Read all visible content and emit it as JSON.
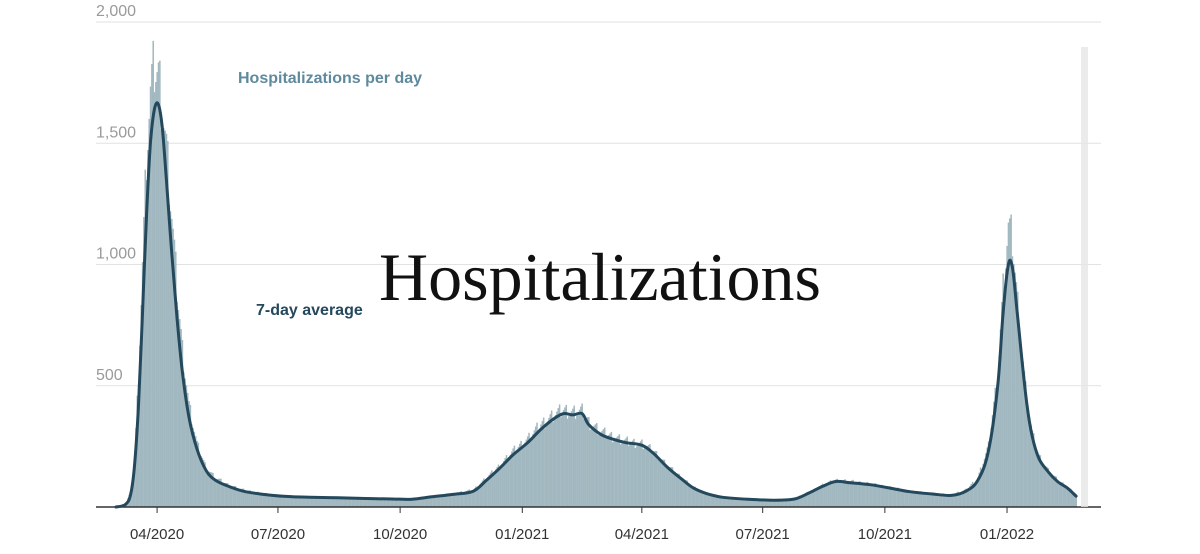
{
  "chart_data": {
    "type": "bar",
    "title": "Hospitalizations",
    "xlabel": "",
    "ylabel": "",
    "ylim": [
      0,
      2000
    ],
    "x_range": [
      "2020-02-15",
      "2022-03-12"
    ],
    "y_ticks": [
      "500",
      "1,000",
      "1,500",
      "2,000"
    ],
    "y_tick_values": [
      500,
      1000,
      1500,
      2000
    ],
    "x_ticks": [
      "04/2020",
      "07/2020",
      "10/2020",
      "01/2021",
      "04/2021",
      "07/2021",
      "10/2021",
      "01/2022"
    ],
    "x_tick_dates": [
      "2020-04-01",
      "2020-07-01",
      "2020-10-01",
      "2021-01-01",
      "2021-04-01",
      "2021-07-01",
      "2021-10-01",
      "2022-01-01"
    ],
    "grid": true,
    "series": [
      {
        "name": "Hospitalizations per day",
        "kind": "bar",
        "color": "#a2b8c0",
        "points": [
          [
            "2020-03-01",
            0
          ],
          [
            "2020-03-08",
            10
          ],
          [
            "2020-03-12",
            60
          ],
          [
            "2020-03-15",
            200
          ],
          [
            "2020-03-18",
            550
          ],
          [
            "2020-03-21",
            1000
          ],
          [
            "2020-03-24",
            1450
          ],
          [
            "2020-03-27",
            1700
          ],
          [
            "2020-03-30",
            1820
          ],
          [
            "2020-04-02",
            1780
          ],
          [
            "2020-04-05",
            1650
          ],
          [
            "2020-04-08",
            1480
          ],
          [
            "2020-04-12",
            1200
          ],
          [
            "2020-04-16",
            900
          ],
          [
            "2020-04-20",
            650
          ],
          [
            "2020-04-25",
            420
          ],
          [
            "2020-05-01",
            260
          ],
          [
            "2020-05-08",
            160
          ],
          [
            "2020-05-15",
            120
          ],
          [
            "2020-05-25",
            90
          ],
          [
            "2020-06-05",
            70
          ],
          [
            "2020-06-20",
            55
          ],
          [
            "2020-07-05",
            45
          ],
          [
            "2020-07-25",
            40
          ],
          [
            "2020-08-15",
            38
          ],
          [
            "2020-09-05",
            35
          ],
          [
            "2020-09-25",
            33
          ],
          [
            "2020-10-10",
            32
          ],
          [
            "2020-10-25",
            45
          ],
          [
            "2020-11-10",
            55
          ],
          [
            "2020-11-25",
            70
          ],
          [
            "2020-12-05",
            120
          ],
          [
            "2020-12-15",
            170
          ],
          [
            "2020-12-25",
            230
          ],
          [
            "2021-01-05",
            280
          ],
          [
            "2021-01-15",
            340
          ],
          [
            "2021-01-25",
            380
          ],
          [
            "2021-02-01",
            400
          ],
          [
            "2021-02-08",
            390
          ],
          [
            "2021-02-15",
            395
          ],
          [
            "2021-02-20",
            350
          ],
          [
            "2021-03-01",
            310
          ],
          [
            "2021-03-10",
            290
          ],
          [
            "2021-03-20",
            270
          ],
          [
            "2021-04-01",
            260
          ],
          [
            "2021-04-10",
            230
          ],
          [
            "2021-04-20",
            170
          ],
          [
            "2021-05-01",
            120
          ],
          [
            "2021-05-10",
            80
          ],
          [
            "2021-05-20",
            55
          ],
          [
            "2021-06-01",
            40
          ],
          [
            "2021-06-20",
            32
          ],
          [
            "2021-07-10",
            28
          ],
          [
            "2021-07-25",
            35
          ],
          [
            "2021-08-05",
            60
          ],
          [
            "2021-08-15",
            90
          ],
          [
            "2021-08-25",
            110
          ],
          [
            "2021-09-05",
            105
          ],
          [
            "2021-09-20",
            95
          ],
          [
            "2021-10-05",
            80
          ],
          [
            "2021-10-20",
            65
          ],
          [
            "2021-11-05",
            55
          ],
          [
            "2021-11-20",
            50
          ],
          [
            "2021-12-01",
            70
          ],
          [
            "2021-12-10",
            120
          ],
          [
            "2021-12-18",
            250
          ],
          [
            "2021-12-25",
            550
          ],
          [
            "2021-12-29",
            900
          ],
          [
            "2022-01-02",
            1150
          ],
          [
            "2022-01-05",
            1100
          ],
          [
            "2022-01-08",
            900
          ],
          [
            "2022-01-12",
            650
          ],
          [
            "2022-01-16",
            430
          ],
          [
            "2022-01-20",
            300
          ],
          [
            "2022-01-25",
            210
          ],
          [
            "2022-02-01",
            150
          ],
          [
            "2022-02-08",
            110
          ],
          [
            "2022-02-15",
            85
          ],
          [
            "2022-02-22",
            50
          ]
        ]
      },
      {
        "name": "7-day average",
        "kind": "line",
        "color": "#24485c",
        "points": [
          [
            "2020-03-01",
            0
          ],
          [
            "2020-03-08",
            10
          ],
          [
            "2020-03-12",
            50
          ],
          [
            "2020-03-15",
            170
          ],
          [
            "2020-03-18",
            420
          ],
          [
            "2020-03-21",
            800
          ],
          [
            "2020-03-24",
            1200
          ],
          [
            "2020-03-27",
            1500
          ],
          [
            "2020-03-30",
            1640
          ],
          [
            "2020-04-02",
            1660
          ],
          [
            "2020-04-05",
            1560
          ],
          [
            "2020-04-08",
            1350
          ],
          [
            "2020-04-12",
            1050
          ],
          [
            "2020-04-16",
            780
          ],
          [
            "2020-04-20",
            560
          ],
          [
            "2020-04-25",
            370
          ],
          [
            "2020-05-01",
            240
          ],
          [
            "2020-05-08",
            150
          ],
          [
            "2020-05-15",
            110
          ],
          [
            "2020-05-25",
            85
          ],
          [
            "2020-06-05",
            65
          ],
          [
            "2020-06-20",
            52
          ],
          [
            "2020-07-05",
            44
          ],
          [
            "2020-07-25",
            40
          ],
          [
            "2020-08-15",
            38
          ],
          [
            "2020-09-05",
            35
          ],
          [
            "2020-09-25",
            33
          ],
          [
            "2020-10-10",
            32
          ],
          [
            "2020-10-25",
            42
          ],
          [
            "2020-11-10",
            52
          ],
          [
            "2020-11-25",
            65
          ],
          [
            "2020-12-05",
            110
          ],
          [
            "2020-12-15",
            160
          ],
          [
            "2020-12-25",
            215
          ],
          [
            "2021-01-05",
            265
          ],
          [
            "2021-01-15",
            320
          ],
          [
            "2021-01-25",
            365
          ],
          [
            "2021-02-01",
            385
          ],
          [
            "2021-02-08",
            380
          ],
          [
            "2021-02-15",
            385
          ],
          [
            "2021-02-20",
            340
          ],
          [
            "2021-03-01",
            300
          ],
          [
            "2021-03-10",
            280
          ],
          [
            "2021-03-20",
            265
          ],
          [
            "2021-04-01",
            255
          ],
          [
            "2021-04-10",
            220
          ],
          [
            "2021-04-20",
            165
          ],
          [
            "2021-05-01",
            115
          ],
          [
            "2021-05-10",
            78
          ],
          [
            "2021-05-20",
            55
          ],
          [
            "2021-06-01",
            40
          ],
          [
            "2021-06-20",
            32
          ],
          [
            "2021-07-10",
            28
          ],
          [
            "2021-07-25",
            33
          ],
          [
            "2021-08-05",
            58
          ],
          [
            "2021-08-15",
            85
          ],
          [
            "2021-08-25",
            105
          ],
          [
            "2021-09-05",
            100
          ],
          [
            "2021-09-20",
            92
          ],
          [
            "2021-10-05",
            78
          ],
          [
            "2021-10-20",
            63
          ],
          [
            "2021-11-05",
            54
          ],
          [
            "2021-11-20",
            48
          ],
          [
            "2021-12-01",
            65
          ],
          [
            "2021-12-10",
            110
          ],
          [
            "2021-12-18",
            230
          ],
          [
            "2021-12-25",
            500
          ],
          [
            "2021-12-29",
            800
          ],
          [
            "2022-01-02",
            1000
          ],
          [
            "2022-01-05",
            990
          ],
          [
            "2022-01-08",
            840
          ],
          [
            "2022-01-12",
            620
          ],
          [
            "2022-01-16",
            420
          ],
          [
            "2022-01-20",
            290
          ],
          [
            "2022-01-25",
            200
          ],
          [
            "2022-02-01",
            145
          ],
          [
            "2022-02-08",
            105
          ],
          [
            "2022-02-15",
            80
          ],
          [
            "2022-02-22",
            45
          ]
        ]
      }
    ],
    "annotations": [
      "Hospitalizations per day",
      "7-day average"
    ]
  }
}
